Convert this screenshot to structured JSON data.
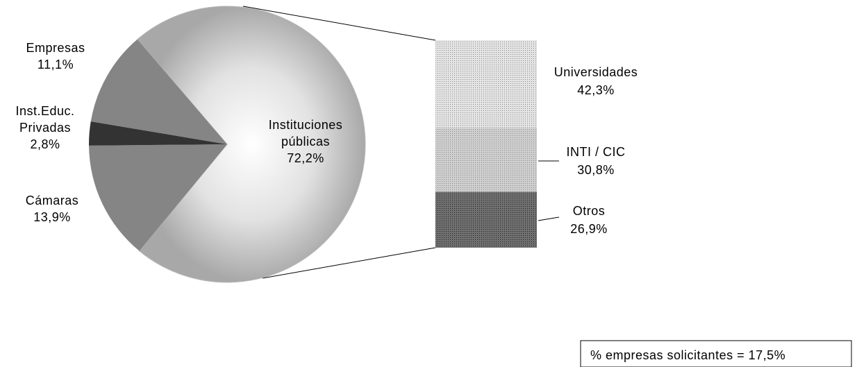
{
  "chart_data": {
    "type": "pie-of-bar",
    "pie": {
      "categories": [
        "Instituciones públicas",
        "Cámaras",
        "Inst.Educ. Privadas",
        "Empresas"
      ],
      "values": [
        72.2,
        13.9,
        2.8,
        11.1
      ],
      "value_labels": [
        "72,2%",
        "13,9%",
        "2,8%",
        "11,1%"
      ],
      "colors": [
        "#b8b8b8",
        "#858585",
        "#333333",
        "#858585"
      ]
    },
    "bar": {
      "categories": [
        "Universidades",
        "INTI / CIC",
        "Otros"
      ],
      "values": [
        42.3,
        30.8,
        26.9
      ],
      "value_labels": [
        "42,3%",
        "30,8%",
        "26,9%"
      ],
      "colors": [
        "#e4e4e4",
        "#cfcfcf",
        "#707070"
      ]
    },
    "annotation": "% empresas solicitantes  = 17,5%"
  }
}
